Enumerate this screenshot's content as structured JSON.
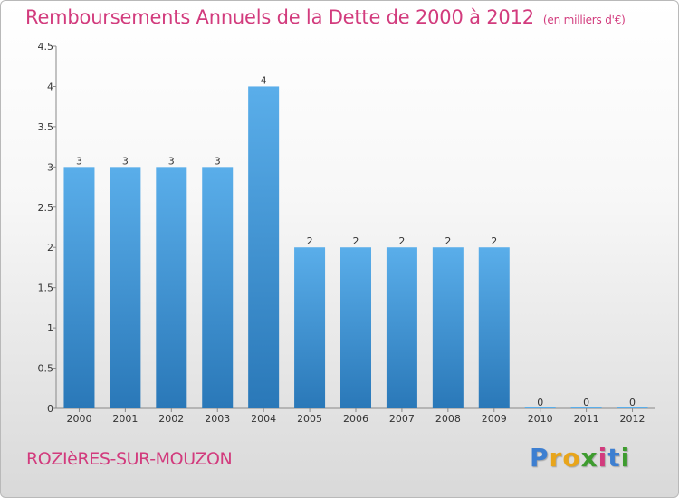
{
  "header": {
    "title": "Remboursements Annuels de la Dette de 2000 à 2012",
    "unit": "(en milliers d'€)"
  },
  "footer": {
    "commune": "ROZIèRES-SUR-MOUZON",
    "logo": "Proxiti"
  },
  "colors": {
    "bar_top": "#5aaeea",
    "bar_bottom": "#2a78b8",
    "title": "#d23b7d"
  },
  "chart_data": {
    "type": "bar",
    "title": "Remboursements Annuels de la Dette de 2000 à 2012",
    "xlabel": "",
    "ylabel": "",
    "categories": [
      "2000",
      "2001",
      "2002",
      "2003",
      "2004",
      "2005",
      "2006",
      "2007",
      "2008",
      "2009",
      "2010",
      "2011",
      "2012"
    ],
    "values": [
      3,
      3,
      3,
      3,
      4,
      2,
      2,
      2,
      2,
      2,
      0,
      0,
      0
    ],
    "ylim": [
      0,
      4.5
    ],
    "yticks": [
      "0",
      "0.5",
      "1",
      "1.5",
      "2",
      "2.5",
      "3",
      "3.5",
      "4",
      "4.5"
    ],
    "grid": false,
    "legend": "none"
  }
}
